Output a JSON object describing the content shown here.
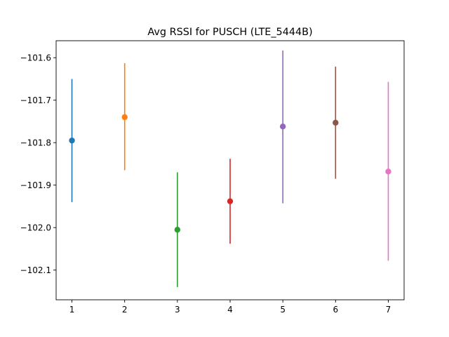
{
  "chart_data": {
    "type": "scatter",
    "title": "Avg RSSI for PUSCH (LTE_5444B)",
    "xlabel": "",
    "ylabel": "",
    "x": [
      1,
      2,
      3,
      4,
      5,
      6,
      7
    ],
    "y": [
      -101.795,
      -101.74,
      -102.005,
      -101.938,
      -101.762,
      -101.753,
      -101.868
    ],
    "err_low": [
      -101.94,
      -101.865,
      -102.14,
      -102.038,
      -101.943,
      -101.885,
      -102.078
    ],
    "err_high": [
      -101.65,
      -101.613,
      -101.87,
      -101.838,
      -101.583,
      -101.621,
      -101.657
    ],
    "colors": [
      "#1f77b4",
      "#ff7f0e",
      "#2ca02c",
      "#d62728",
      "#9467bd",
      "#8c564b",
      "#e377c2"
    ],
    "xlim": [
      0.7,
      7.3
    ],
    "ylim": [
      -102.17,
      -101.56
    ],
    "x_ticks": [
      "1",
      "2",
      "3",
      "4",
      "5",
      "6",
      "7"
    ],
    "y_ticks": [
      "−101.6",
      "−101.7",
      "−101.8",
      "−101.9",
      "−102.0",
      "−102.1"
    ],
    "y_tick_values": [
      -101.6,
      -101.7,
      -101.8,
      -101.9,
      -102.0,
      -102.1
    ],
    "grid": false,
    "legend": "none"
  }
}
